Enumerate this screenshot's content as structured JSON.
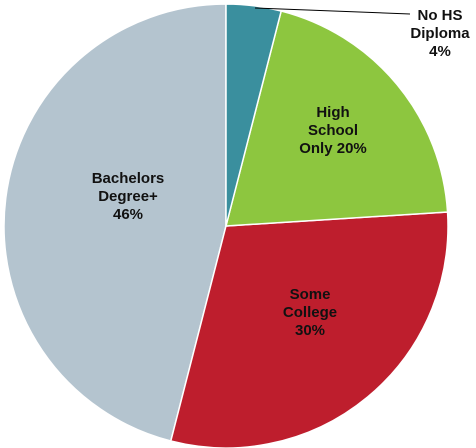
{
  "chart_data": {
    "type": "pie",
    "categories": [
      "No HS Diploma",
      "High School Only",
      "Some College",
      "Bachelors Degree+"
    ],
    "values": [
      4,
      20,
      30,
      46
    ],
    "value_labels": [
      "4%",
      "20%",
      "30%",
      "46%"
    ],
    "colors": [
      "#3a8f9e",
      "#8dc63f",
      "#be1e2d",
      "#b4c4cf"
    ]
  }
}
